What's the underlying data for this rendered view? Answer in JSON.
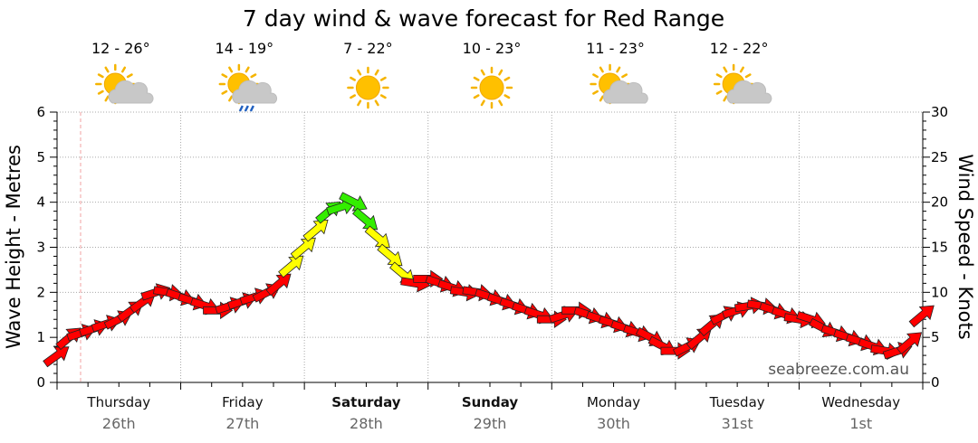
{
  "chart_data": {
    "type": "line",
    "title": "7 day wind & wave forecast for Red Range",
    "ylabel_left": "Wave Height - Metres",
    "ylabel_right": "Wind Speed - Knots",
    "ylim_left": [
      0,
      6
    ],
    "ylim_right": [
      0,
      30
    ],
    "yticks_left": [
      "0",
      "1",
      "2",
      "3",
      "4",
      "5",
      "6"
    ],
    "yticks_right": [
      "0",
      "5",
      "10",
      "15",
      "20",
      "25",
      "30"
    ],
    "grid": true,
    "watermark": "seabreeze.com.au",
    "days": [
      {
        "day": "Thursday",
        "date": "26th",
        "temps": "12 - 26°",
        "weather_icon": "partly-cloudy-icon",
        "bold": false
      },
      {
        "day": "Friday",
        "date": "27th",
        "temps": "14 - 19°",
        "weather_icon": "showers-icon",
        "bold": false
      },
      {
        "day": "Saturday",
        "date": "28th",
        "temps": "7 - 22°",
        "weather_icon": "sunny-icon",
        "bold": true
      },
      {
        "day": "Sunday",
        "date": "29th",
        "temps": "10 - 23°",
        "weather_icon": "sunny-icon",
        "bold": true
      },
      {
        "day": "Monday",
        "date": "30th",
        "temps": "11 - 23°",
        "weather_icon": "partly-cloudy-icon",
        "bold": false
      },
      {
        "day": "Tuesday",
        "date": "31st",
        "temps": "12 - 22°",
        "weather_icon": "partly-cloudy-icon",
        "bold": false
      },
      {
        "day": "Wednesday",
        "date": "1st",
        "temps": "",
        "weather_icon": "",
        "bold": false
      }
    ],
    "wind_color_scale": {
      "light": "#ffff00",
      "moderate": "#33ee00",
      "strong": "#ff0000"
    },
    "series": [
      {
        "name": "Wind Speed - Knots",
        "marker": "arrow",
        "x": [
          0.0,
          0.1,
          0.2,
          0.3,
          0.4,
          0.5,
          0.6,
          0.7,
          0.8,
          0.9,
          1.0,
          1.1,
          1.2,
          1.3,
          1.4,
          1.5,
          1.6,
          1.7,
          1.8,
          1.9,
          2.0,
          2.1,
          2.2,
          2.3,
          2.4,
          2.5,
          2.6,
          2.7,
          2.8,
          2.9,
          3.0,
          3.1,
          3.2,
          3.3,
          3.4,
          3.5,
          3.6,
          3.7,
          3.8,
          3.9,
          4.0,
          4.1,
          4.2,
          4.3,
          4.4,
          4.5,
          4.6,
          4.7,
          4.8,
          4.9,
          5.0,
          5.1,
          5.2,
          5.3,
          5.4,
          5.5,
          5.6,
          5.7,
          5.8,
          5.9,
          6.0,
          6.1,
          6.2,
          6.3,
          6.4,
          6.5,
          6.6,
          6.7,
          6.8,
          6.9,
          7.0
        ],
        "y": [
          3,
          5,
          5.5,
          6,
          6.5,
          7,
          8,
          9,
          10,
          10,
          9.5,
          9,
          8.5,
          8,
          8.5,
          9,
          9.5,
          10,
          11,
          13,
          15,
          17,
          19,
          19.5,
          20,
          18,
          16,
          14,
          12,
          11,
          11.5,
          11,
          10.5,
          10,
          10,
          9.5,
          9,
          8.5,
          8,
          7.5,
          7,
          7.5,
          8,
          7.5,
          7,
          6.5,
          6,
          5.5,
          5,
          4,
          3.5,
          4,
          5,
          6.5,
          7.5,
          8,
          8.5,
          8.5,
          8,
          7.5,
          7,
          7,
          6,
          5.5,
          5,
          4.5,
          4,
          3.5,
          3.5,
          4.5,
          7.5
        ]
      }
    ]
  }
}
